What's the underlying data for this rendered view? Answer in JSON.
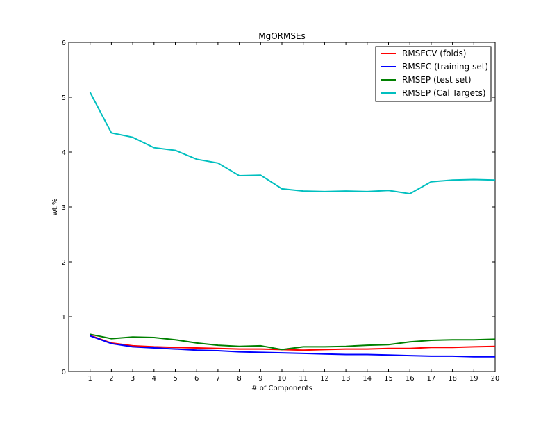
{
  "chart_data": {
    "type": "line",
    "title": "MgORMSEs",
    "xlabel": "# of Components",
    "ylabel": "wt.%",
    "xlim": [
      0,
      20
    ],
    "ylim": [
      0,
      6
    ],
    "x": [
      1,
      2,
      3,
      4,
      5,
      6,
      7,
      8,
      9,
      10,
      11,
      12,
      13,
      14,
      15,
      16,
      17,
      18,
      19,
      20
    ],
    "x_ticks": [
      "1",
      "2",
      "3",
      "4",
      "5",
      "6",
      "7",
      "8",
      "9",
      "10",
      "11",
      "12",
      "13",
      "14",
      "15",
      "16",
      "17",
      "18",
      "19",
      "20"
    ],
    "y_ticks": [
      "0",
      "1",
      "2",
      "3",
      "4",
      "5",
      "6"
    ],
    "y_tick_values": [
      0,
      1,
      2,
      3,
      4,
      5,
      6
    ],
    "grid": false,
    "legend_position": "top-right",
    "series": [
      {
        "name": "RMSECV (folds)",
        "color": "#ff0000",
        "values": [
          0.66,
          0.52,
          0.47,
          0.45,
          0.44,
          0.43,
          0.42,
          0.41,
          0.41,
          0.4,
          0.39,
          0.4,
          0.41,
          0.41,
          0.42,
          0.42,
          0.44,
          0.44,
          0.45,
          0.46
        ]
      },
      {
        "name": "RMSEC (training set)",
        "color": "#0000ff",
        "values": [
          0.65,
          0.51,
          0.45,
          0.43,
          0.41,
          0.39,
          0.38,
          0.36,
          0.35,
          0.34,
          0.33,
          0.32,
          0.31,
          0.31,
          0.3,
          0.29,
          0.28,
          0.28,
          0.27,
          0.27
        ]
      },
      {
        "name": "RMSEP (test set)",
        "color": "#008000",
        "values": [
          0.68,
          0.6,
          0.63,
          0.62,
          0.58,
          0.52,
          0.48,
          0.46,
          0.47,
          0.4,
          0.45,
          0.45,
          0.46,
          0.48,
          0.49,
          0.54,
          0.57,
          0.58,
          0.58,
          0.59
        ]
      },
      {
        "name": "RMSEP (Cal Targets)",
        "color": "#00bfbf",
        "values": [
          5.09,
          4.35,
          4.27,
          4.08,
          4.03,
          3.87,
          3.8,
          3.57,
          3.58,
          3.33,
          3.29,
          3.28,
          3.29,
          3.28,
          3.3,
          3.24,
          3.46,
          3.49,
          3.5,
          3.49
        ]
      }
    ]
  }
}
